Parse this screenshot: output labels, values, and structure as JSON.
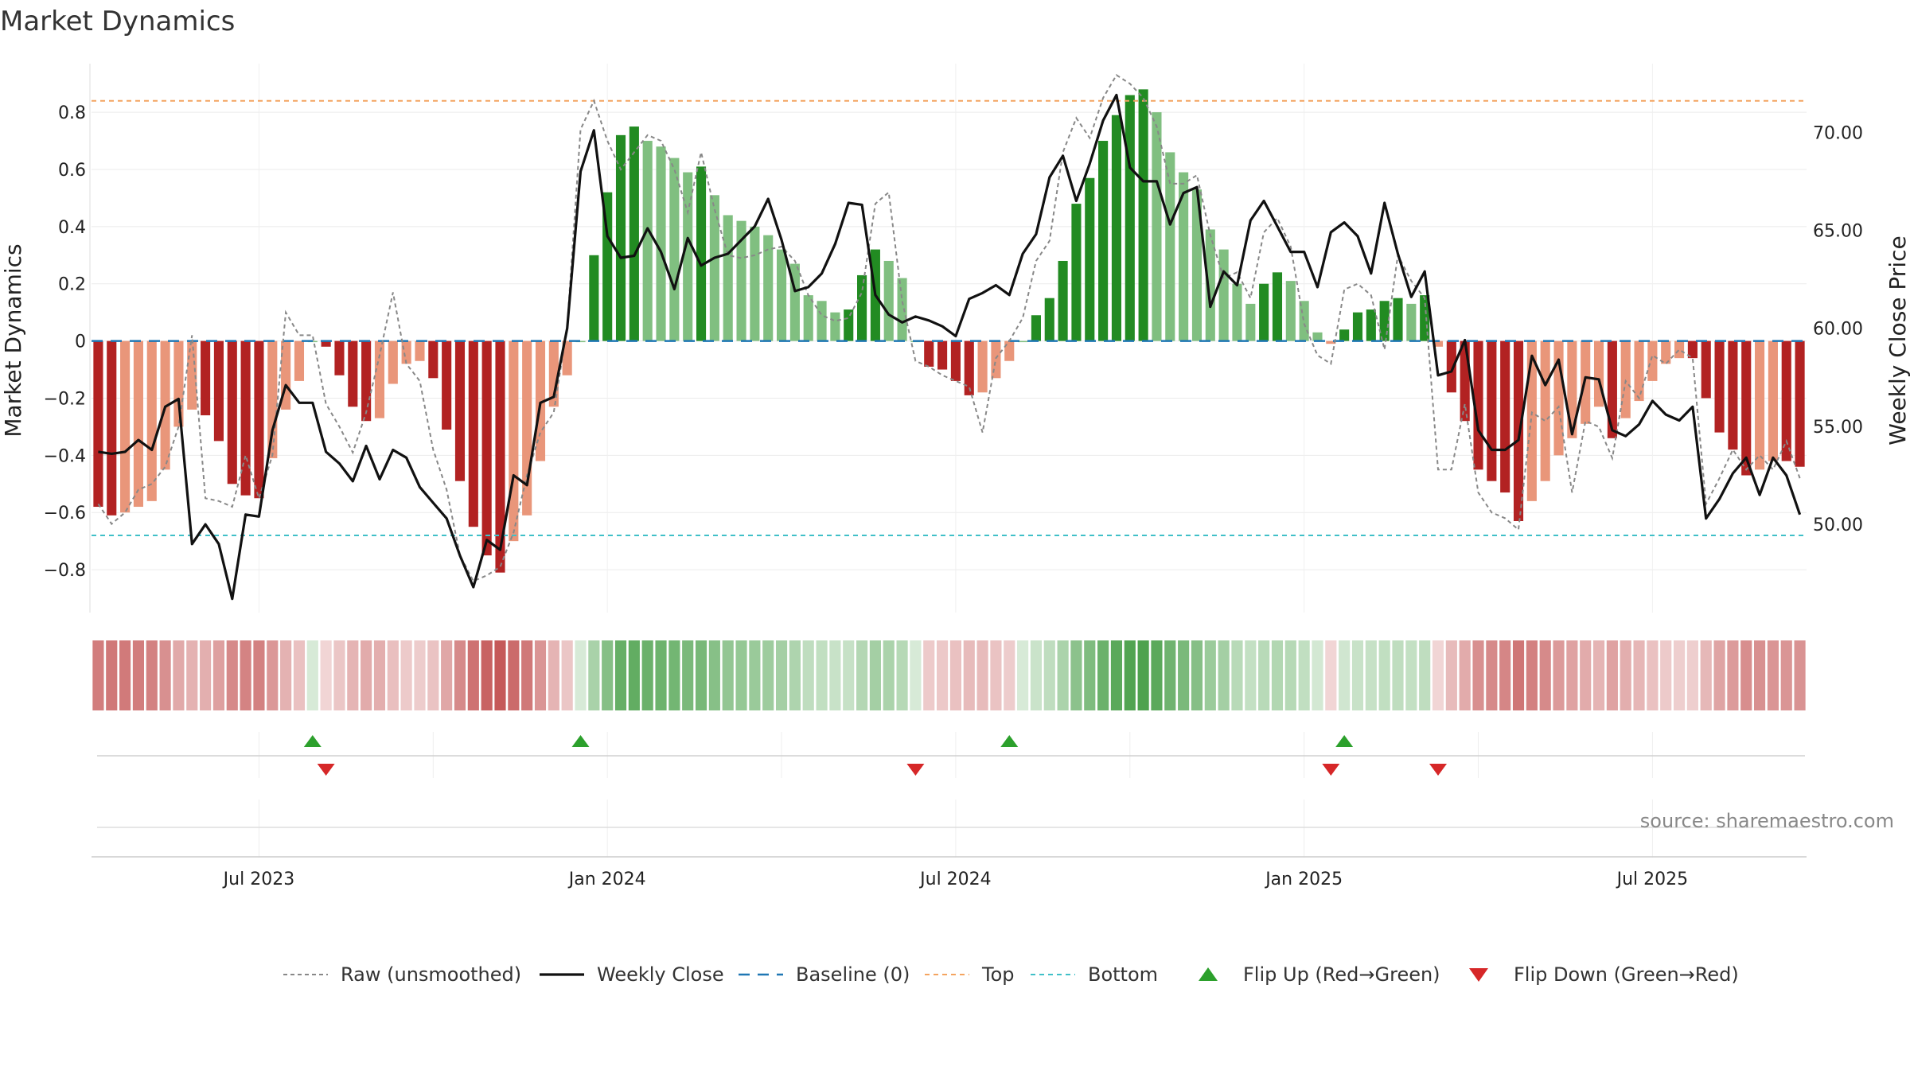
{
  "chart_data": {
    "type": "bar",
    "title": "Market Dynamics",
    "ylabel_left": "Market Dynamics",
    "ylabel_right": "Weekly Close Price",
    "source": "source: sharemaestro.com",
    "ylim_left": [
      -0.95,
      0.97
    ],
    "ylim_right": [
      45.5,
      73.5
    ],
    "left_ticks": [
      {
        "value": 0.8,
        "label": "0.8"
      },
      {
        "value": 0.6,
        "label": "0.6"
      },
      {
        "value": 0.4,
        "label": "0.4"
      },
      {
        "value": 0.2,
        "label": "0.2"
      },
      {
        "value": 0,
        "label": "0"
      },
      {
        "value": -0.2,
        "label": "−0.2"
      },
      {
        "value": -0.4,
        "label": "−0.4"
      },
      {
        "value": -0.6,
        "label": "−0.6"
      },
      {
        "value": -0.8,
        "label": "−0.8"
      }
    ],
    "right_ticks": [
      {
        "value": 70,
        "label": "70.00"
      },
      {
        "value": 65,
        "label": "65.00"
      },
      {
        "value": 60,
        "label": "60.00"
      },
      {
        "value": 55,
        "label": "55.00"
      },
      {
        "value": 50,
        "label": "50.00"
      }
    ],
    "x_ticks": [
      {
        "week": 12,
        "label": "Jul 2023"
      },
      {
        "week": 38,
        "label": "Jan 2024"
      },
      {
        "week": 64,
        "label": "Jul 2024"
      },
      {
        "week": 90,
        "label": "Jan 2025"
      },
      {
        "week": 116,
        "label": "Jul 2025"
      }
    ],
    "top_line": 0.84,
    "bottom_line": -0.68,
    "baseline": 0,
    "weeks": 128,
    "dynamics": [
      -0.58,
      -0.61,
      -0.6,
      -0.58,
      -0.56,
      -0.45,
      -0.3,
      -0.24,
      -0.26,
      -0.35,
      -0.5,
      -0.54,
      -0.55,
      -0.41,
      -0.24,
      -0.14,
      0.0,
      -0.02,
      -0.12,
      -0.23,
      -0.28,
      -0.27,
      -0.15,
      -0.08,
      -0.07,
      -0.13,
      -0.31,
      -0.49,
      -0.65,
      -0.75,
      -0.81,
      -0.7,
      -0.61,
      -0.42,
      -0.23,
      -0.12,
      0.0,
      0.3,
      0.52,
      0.72,
      0.75,
      0.7,
      0.68,
      0.64,
      0.59,
      0.61,
      0.51,
      0.44,
      0.42,
      0.4,
      0.37,
      0.32,
      0.27,
      0.16,
      0.14,
      0.1,
      0.11,
      0.23,
      0.32,
      0.28,
      0.22,
      0.0,
      -0.09,
      -0.1,
      -0.14,
      -0.19,
      -0.18,
      -0.13,
      -0.07,
      0.0,
      0.09,
      0.15,
      0.28,
      0.48,
      0.57,
      0.7,
      0.79,
      0.86,
      0.88,
      0.8,
      0.66,
      0.59,
      0.53,
      0.39,
      0.32,
      0.2,
      0.13,
      0.2,
      0.24,
      0.21,
      0.14,
      0.03,
      -0.01,
      0.04,
      0.1,
      0.11,
      0.14,
      0.15,
      0.13,
      0.16,
      -0.02,
      -0.18,
      -0.28,
      -0.45,
      -0.49,
      -0.53,
      -0.63,
      -0.56,
      -0.49,
      -0.4,
      -0.34,
      -0.29,
      -0.23,
      -0.34,
      -0.27,
      -0.21,
      -0.14,
      -0.08,
      -0.06,
      -0.06,
      -0.2,
      -0.32,
      -0.38,
      -0.47,
      -0.45,
      -0.42,
      -0.42,
      -0.44
    ],
    "raw": [
      -0.57,
      -0.64,
      -0.6,
      -0.52,
      -0.5,
      -0.44,
      -0.3,
      0.02,
      -0.55,
      -0.56,
      -0.58,
      -0.4,
      -0.55,
      -0.4,
      0.1,
      0.02,
      0.02,
      -0.22,
      -0.3,
      -0.39,
      -0.25,
      -0.05,
      0.17,
      -0.08,
      -0.14,
      -0.38,
      -0.52,
      -0.75,
      -0.84,
      -0.82,
      -0.79,
      -0.67,
      -0.47,
      -0.32,
      -0.25,
      0.05,
      0.74,
      0.84,
      0.7,
      0.6,
      0.66,
      0.72,
      0.7,
      0.6,
      0.45,
      0.66,
      0.46,
      0.3,
      0.29,
      0.3,
      0.32,
      0.33,
      0.28,
      0.16,
      0.09,
      0.07,
      0.08,
      0.17,
      0.48,
      0.52,
      0.14,
      -0.07,
      -0.09,
      -0.12,
      -0.14,
      -0.16,
      -0.32,
      -0.06,
      0.0,
      0.08,
      0.28,
      0.35,
      0.66,
      0.78,
      0.71,
      0.85,
      0.93,
      0.9,
      0.85,
      0.75,
      0.55,
      0.55,
      0.58,
      0.37,
      0.22,
      0.24,
      0.15,
      0.38,
      0.43,
      0.33,
      0.06,
      -0.05,
      -0.08,
      0.18,
      0.2,
      0.16,
      -0.03,
      0.3,
      0.21,
      0.15,
      -0.45,
      -0.45,
      -0.22,
      -0.53,
      -0.6,
      -0.62,
      -0.66,
      -0.25,
      -0.28,
      -0.23,
      -0.53,
      -0.28,
      -0.3,
      -0.41,
      -0.14,
      -0.2,
      -0.05,
      -0.08,
      -0.03,
      -0.06,
      -0.57,
      -0.48,
      -0.38,
      -0.45,
      -0.4,
      -0.45,
      -0.35,
      -0.48
    ],
    "weekly_close": [
      53.7,
      53.6,
      53.7,
      54.3,
      53.8,
      56.0,
      56.4,
      49.0,
      50.0,
      49.0,
      46.2,
      50.5,
      50.4,
      54.8,
      57.1,
      56.2,
      56.2,
      53.7,
      53.1,
      52.2,
      54.0,
      52.3,
      53.8,
      53.4,
      51.9,
      51.1,
      50.3,
      48.4,
      46.8,
      49.2,
      48.7,
      52.5,
      52.0,
      56.2,
      56.5,
      60.0,
      68.0,
      70.1,
      64.7,
      63.6,
      63.7,
      65.1,
      63.9,
      62.0,
      64.6,
      63.2,
      63.6,
      63.8,
      64.5,
      65.2,
      66.6,
      64.5,
      61.9,
      62.1,
      62.8,
      64.3,
      66.4,
      66.3,
      61.7,
      60.7,
      60.3,
      60.6,
      60.4,
      60.1,
      59.6,
      61.5,
      61.8,
      62.2,
      61.7,
      63.8,
      64.8,
      67.7,
      68.8,
      66.5,
      68.4,
      70.6,
      71.9,
      68.2,
      67.5,
      67.5,
      65.3,
      66.9,
      67.2,
      61.1,
      62.9,
      62.2,
      65.5,
      66.5,
      65.2,
      63.9,
      63.9,
      62.1,
      64.9,
      65.4,
      64.7,
      62.8,
      66.4,
      63.8,
      61.6,
      62.9,
      57.6,
      57.8,
      59.4,
      54.8,
      53.8,
      53.8,
      54.3,
      58.6,
      57.1,
      58.4,
      54.6,
      57.5,
      57.4,
      54.8,
      54.5,
      55.1,
      56.3,
      55.6,
      55.3,
      56.0,
      50.3,
      51.3,
      52.6,
      53.4,
      51.5,
      53.4,
      52.5,
      50.5
    ],
    "flip_up_weeks": [
      16,
      36,
      68,
      93
    ],
    "flip_down_weeks": [
      17,
      61,
      92,
      100
    ],
    "colors": {
      "strong_red": "#b22222",
      "light_red": "#e9967a",
      "strong_green": "#228b22",
      "light_green": "#80bf80",
      "raw_line": "#888888",
      "close_line": "#111111",
      "baseline": "#1f77b4",
      "top": "#f4a460",
      "bottom": "#40c0c8",
      "flip_up": "#2ca02c",
      "flip_down": "#d62728"
    },
    "legend": [
      {
        "key": "raw",
        "label": "Raw (unsmoothed)"
      },
      {
        "key": "close",
        "label": "Weekly Close"
      },
      {
        "key": "baseline",
        "label": "Baseline (0)"
      },
      {
        "key": "top",
        "label": "Top"
      },
      {
        "key": "bottom",
        "label": "Bottom"
      },
      {
        "key": "flip_up",
        "label": "Flip Up (Red→Green)"
      },
      {
        "key": "flip_down",
        "label": "Flip Down (Green→Red)"
      }
    ],
    "legend_placement": "bottom"
  }
}
